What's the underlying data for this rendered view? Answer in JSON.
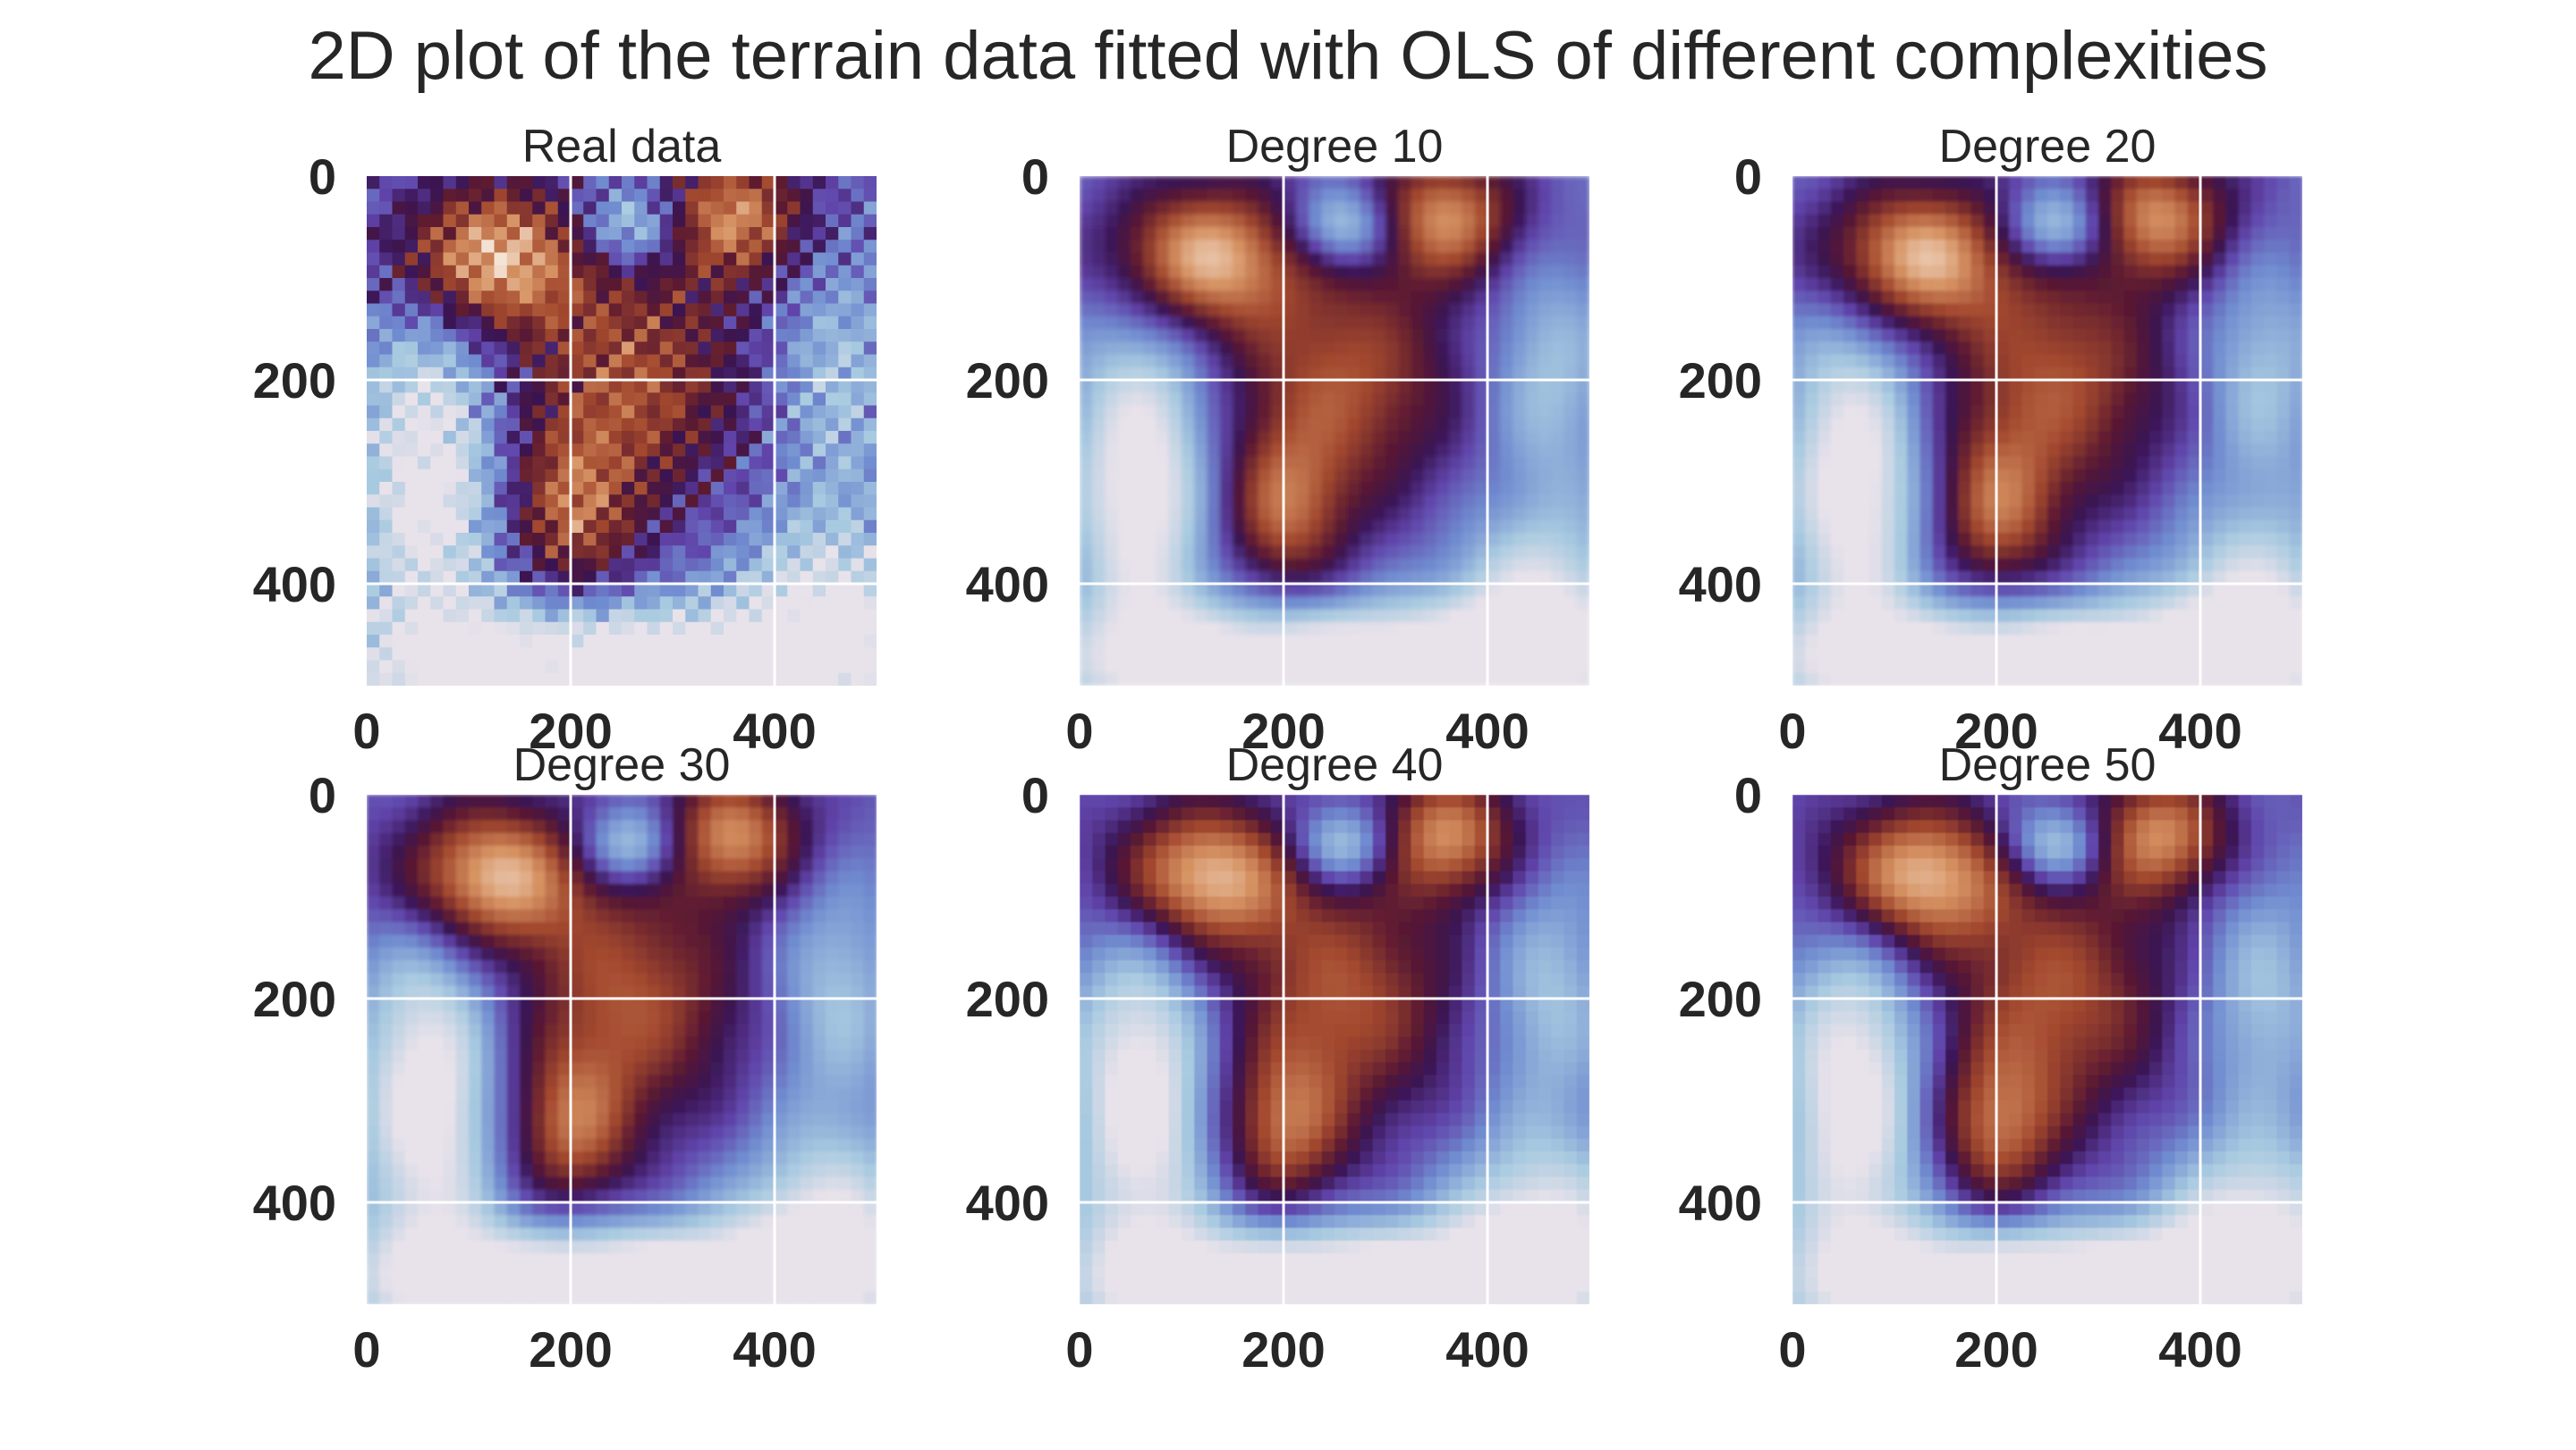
{
  "figure": {
    "suptitle": "2D plot of the terrain data fitted with OLS of different complexities"
  },
  "chart_data": {
    "type": "heatmap",
    "title": "2D plot of the terrain data fitted with OLS of different complexities",
    "colormap": "twilight_shifted",
    "grid": true,
    "axes": {
      "x_range": [
        0,
        500
      ],
      "y_range": [
        0,
        500
      ],
      "y_inverted": true,
      "x_ticks": [
        0,
        200,
        400
      ],
      "y_ticks": [
        0,
        200,
        400
      ],
      "x_tick_labels": [
        "0",
        "200",
        "400"
      ],
      "y_tick_labels": [
        "0",
        "200",
        "400"
      ]
    },
    "panels": [
      {
        "title": "Real data",
        "degree": null,
        "smoothness": 0
      },
      {
        "title": "Degree 10",
        "degree": 10,
        "smoothness": 3
      },
      {
        "title": "Degree 20",
        "degree": 20,
        "smoothness": 2
      },
      {
        "title": "Degree 30",
        "degree": 30,
        "smoothness": 2
      },
      {
        "title": "Degree 40",
        "degree": 40,
        "smoothness": 1
      },
      {
        "title": "Degree 50",
        "degree": 50,
        "smoothness": 1
      }
    ]
  }
}
